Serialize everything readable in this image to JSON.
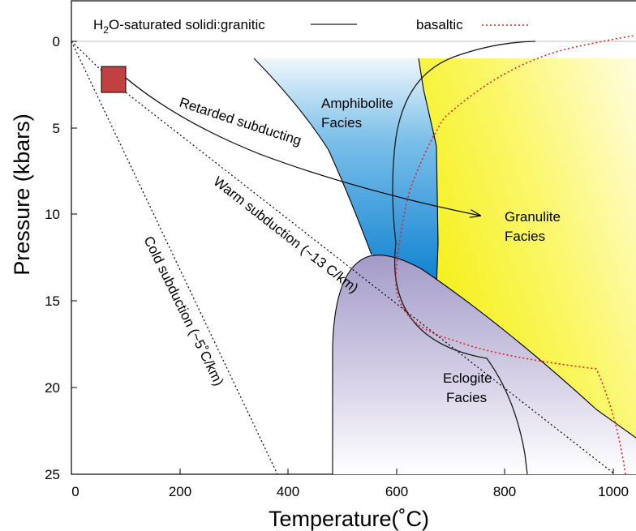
{
  "axes": {
    "x_title": "Temperature(˚C)",
    "y_title": "Pressure (kbars)",
    "x_ticks": [
      "0",
      "200",
      "400",
      "600",
      "800",
      "1000"
    ],
    "y_ticks": [
      "0",
      "5",
      "10",
      "15",
      "20",
      "25"
    ]
  },
  "legend": {
    "granitic_label_pre": "H",
    "granitic_label_sub": "2",
    "granitic_label_post": "O-saturated solidi:granitic",
    "basaltic_label": "basaltic"
  },
  "regions": {
    "amphibolite_line1": "Amphibolite",
    "amphibolite_line2": "Facies",
    "granulite_line1": "Granulite",
    "granulite_line2": "Facies",
    "eclogite_line1": "Eclogite",
    "eclogite_line2": "Facies"
  },
  "paths": {
    "retarded": "Retarded  subducting",
    "warm": "Warm subduction (~13 C/km)",
    "cold": "Cold subduction (~5˚C/km)"
  },
  "colors": {
    "amphibolite_top": "#e6f3fb",
    "amphibolite_bottom": "#0a7fd0",
    "granulite": "#f7f21a",
    "eclogite_top": "#a49cc9",
    "eclogite_bottom": "#ffffff",
    "granitic_line": "#1a1a1a",
    "basaltic_line": "#e02020",
    "marker": "#c0413f"
  }
}
